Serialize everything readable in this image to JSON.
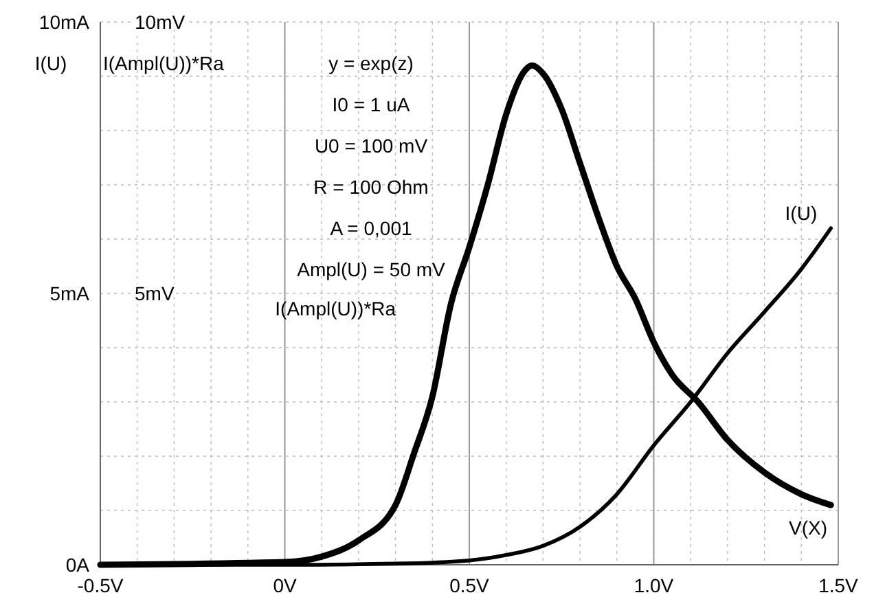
{
  "chart_data": {
    "type": "line",
    "xlabel": "V(X)",
    "ylabel": "I(U)",
    "y2label": "I(Ampl(U))*Ra",
    "xlim": [
      -0.5,
      1.5
    ],
    "xticks": [
      {
        "value": -0.5,
        "label": "-0.5V"
      },
      {
        "value": 0,
        "label": "0V"
      },
      {
        "value": 0.5,
        "label": "0.5V"
      },
      {
        "value": 1.0,
        "label": "1.0V"
      },
      {
        "value": 1.5,
        "label": "1.5V"
      }
    ],
    "ylim": [
      0,
      10
    ],
    "yticks": [
      {
        "value": 0,
        "label": "0A"
      },
      {
        "value": 5,
        "label": "5mA"
      },
      {
        "value": 10,
        "label": "10mA"
      }
    ],
    "y2lim": [
      0,
      10
    ],
    "y2ticks": [
      {
        "value": 5,
        "label": "5mV"
      },
      {
        "value": 10,
        "label": "10mV"
      }
    ],
    "grid": true,
    "annotations": [
      "y = exp(z)",
      "I0 = 1 uA",
      "U0 = 100 mV",
      "R = 100 Ohm",
      "A = 0,001",
      "Ampl(U) = 50 mV"
    ],
    "series": [
      {
        "name": "I(U)",
        "color": "#000000",
        "x": [
          -0.5,
          0,
          0.3,
          0.5,
          0.6,
          0.7,
          0.8,
          0.9,
          1.0,
          1.1,
          1.2,
          1.3,
          1.4,
          1.48
        ],
        "values": [
          0,
          0,
          0.02,
          0.08,
          0.18,
          0.35,
          0.7,
          1.3,
          2.2,
          3.0,
          3.9,
          4.66,
          5.45,
          6.2
        ]
      },
      {
        "name": "I(Ampl(U))*Ra",
        "color": "#000000",
        "axis": "y2",
        "x": [
          -0.5,
          0,
          0.1,
          0.2,
          0.3,
          0.35,
          0.4,
          0.45,
          0.5,
          0.55,
          0.6,
          0.65,
          0.67,
          0.7,
          0.75,
          0.8,
          0.85,
          0.9,
          0.95,
          1.0,
          1.05,
          1.12,
          1.2,
          1.3,
          1.4,
          1.48
        ],
        "values": [
          0,
          0.05,
          0.15,
          0.45,
          1.1,
          2.05,
          3.1,
          4.8,
          5.85,
          7.0,
          8.3,
          9.1,
          9.2,
          9.05,
          8.4,
          7.4,
          6.4,
          5.5,
          4.9,
          4.1,
          3.5,
          3.0,
          2.3,
          1.7,
          1.3,
          1.1
        ]
      }
    ]
  }
}
